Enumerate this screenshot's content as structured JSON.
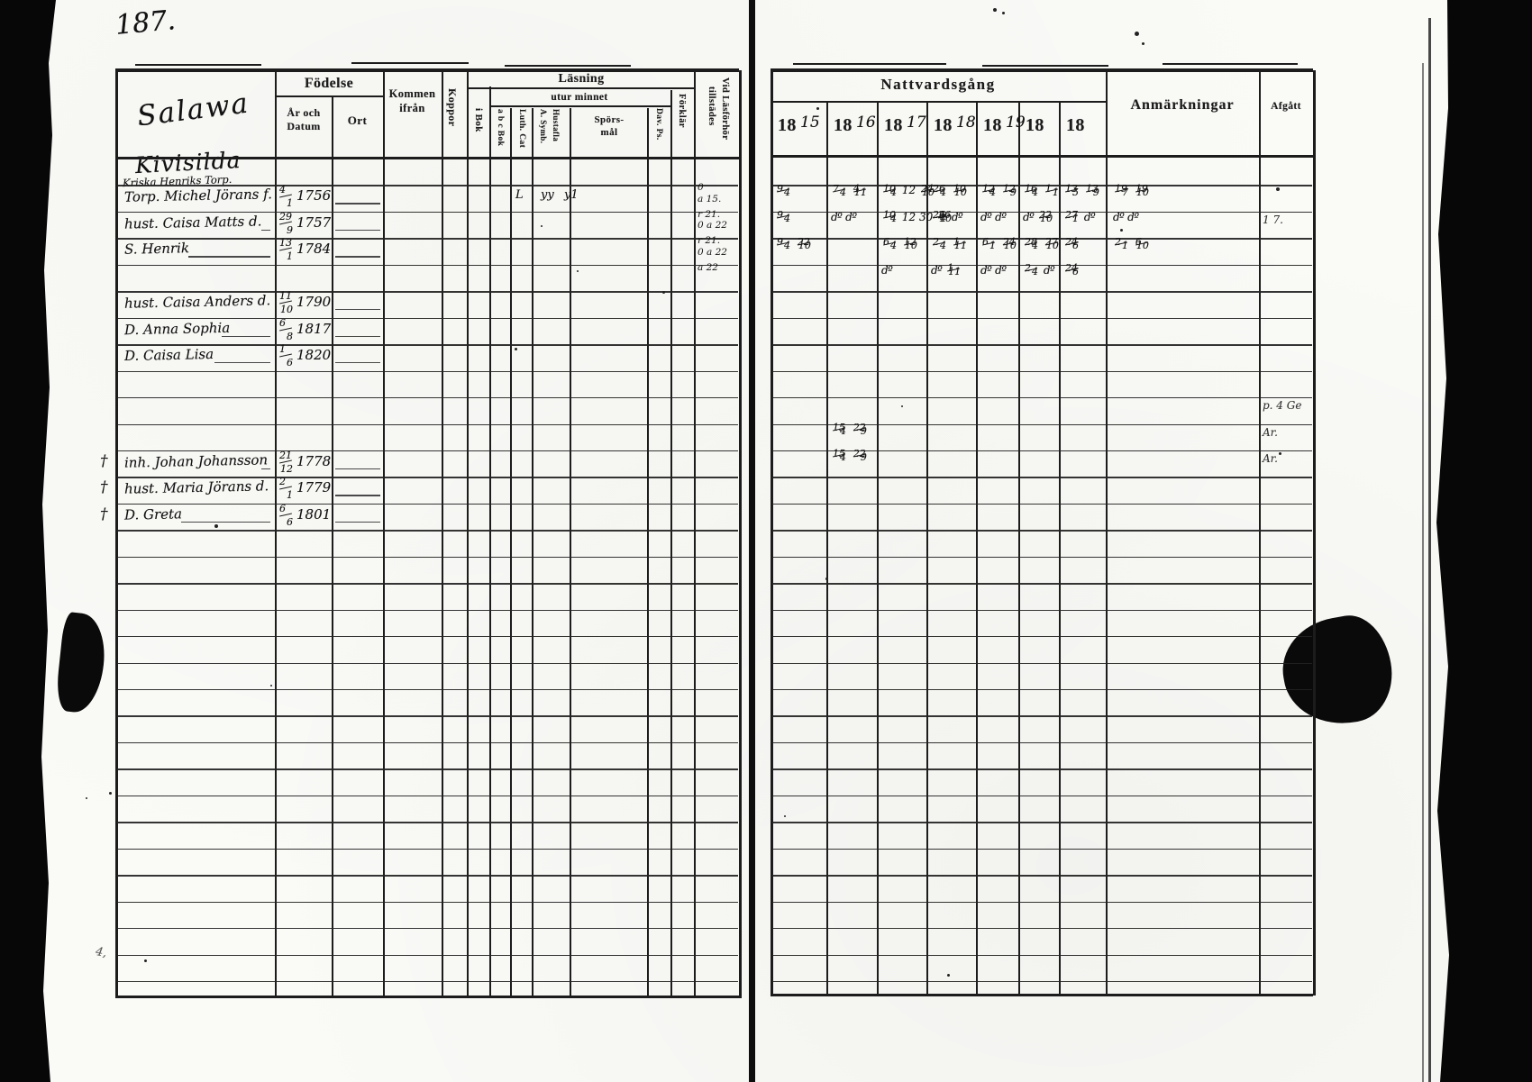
{
  "page_number": "187.",
  "left_page": {
    "village_script": "Salawa",
    "farm_script": "Kivisilda",
    "farm_subtitle": "Kriska Henriks Torp.",
    "columns": {
      "fodelse": "Födelse",
      "ar_och_datum": "År och\nDatum",
      "ort": "Ort",
      "kommen_ifran": "Kommen\nifrån",
      "koppor": "Koppor",
      "lasning": "Läsning",
      "utur_minnet": "utur minnet",
      "i_bok": "i Bok",
      "abc_bok": "a b c Bok",
      "luth_cat": "Luth. Cat",
      "a_symb": "A. Symb.",
      "hustafla": "Hustafla",
      "sporsmal": "Spörs-\nmål",
      "dav_ps": "Dav. Ps.",
      "forklar": "Förklär",
      "vid_lasforhor": "Vid Läsförhör",
      "tillstades": "tillstädes"
    },
    "entries": [
      {
        "row": 1,
        "margin": "",
        "name": "Torp. Michel Jörans f.",
        "birth_day": "4",
        "birth_month": "1",
        "birth_year": "1756"
      },
      {
        "row": 2,
        "margin": "",
        "name": "hust. Caisa Matts d.",
        "birth_day": "29",
        "birth_month": "9",
        "birth_year": "1757"
      },
      {
        "row": 3,
        "margin": "",
        "name": "S. Henrik",
        "birth_day": "13",
        "birth_month": "1",
        "birth_year": "1784"
      },
      {
        "row": 5,
        "margin": "",
        "name": "hust. Caisa Anders d.",
        "birth_day": "11",
        "birth_month": "10",
        "birth_year": "1790"
      },
      {
        "row": 6,
        "margin": "",
        "name": "D. Anna Sophia",
        "birth_day": "6",
        "birth_month": "8",
        "birth_year": "1817"
      },
      {
        "row": 7,
        "margin": "",
        "name": "D. Caisa Lisa",
        "birth_day": "1",
        "birth_month": "6",
        "birth_year": "1820"
      },
      {
        "row": 11,
        "margin": "†",
        "name": "inh. Johan Johansson",
        "birth_day": "21",
        "birth_month": "12",
        "birth_year": "1778"
      },
      {
        "row": 12,
        "margin": "†",
        "name": "hust. Maria Jörans d.",
        "birth_day": "2",
        "birth_month": "1",
        "birth_year": "1779"
      },
      {
        "row": 13,
        "margin": "†",
        "name": "D. Greta",
        "birth_day": "6",
        "birth_month": "6",
        "birth_year": "1801"
      }
    ],
    "reading_marks": [
      {
        "row": 1,
        "marks": [
          "L",
          "yy",
          "y1"
        ]
      }
    ],
    "attendance_marks": [
      {
        "row": 1,
        "lines": "0\na 15."
      },
      {
        "row": 2,
        "lines": "r 21.\n0 a 22"
      },
      {
        "row": 3,
        "lines": "r 21.\n0 a 22"
      },
      {
        "row": 4,
        "lines": "a 22"
      }
    ]
  },
  "right_page": {
    "title": "Nattvardsgång",
    "anmarkningar": "Anmärkningar",
    "afgatt": "Afgått",
    "year_print": "18",
    "year_suffixes": [
      "15",
      "16",
      "17",
      "18",
      "19",
      "",
      ""
    ],
    "communion_rows": [
      {
        "row": 1,
        "cells": [
          "9/4",
          "7/4 4/11",
          "10/4 12 24/10",
          "26/4 10/10",
          "12/4 12/9",
          "16/4 1/1",
          "13/5 13/9"
        ],
        "anm": "19/7 19/10",
        "anm_is_marks": true
      },
      {
        "row": 2,
        "cells": [
          "9/4",
          "d:o d:o",
          "10/4 12 30 26/10",
          "26/4 d:o",
          "d:o d:o",
          "d:o 22/10",
          "27/1 d:o"
        ],
        "anm": "d:o d:o",
        "anm_is_marks": true
      },
      {
        "row": 3,
        "cells": [
          "9/4 22/10",
          "",
          "6/4 12/10",
          "2/4 1/11",
          "6/1 24/10",
          "28/4 27/10",
          "24/6"
        ],
        "anm": "2/1 6/10",
        "anm_is_marks": true
      },
      {
        "row": 4,
        "cells": [
          "",
          "",
          "d:o",
          "d:o 1/11",
          "d:o d:o",
          "2/4 d:o",
          "24/6"
        ],
        "anm": "",
        "anm_is_marks": false
      },
      {
        "row": 10,
        "cells": [
          "",
          "15/4 22/9",
          "",
          "",
          "",
          "",
          ""
        ],
        "anm": "",
        "anm_is_marks": false
      },
      {
        "row": 11,
        "cells": [
          "",
          "15/4 22/9",
          "",
          "",
          "",
          "",
          ""
        ],
        "anm": "",
        "anm_is_marks": false
      }
    ],
    "afgatt_marks": [
      {
        "row": 2,
        "text": "1 7."
      },
      {
        "row": 9,
        "text": "p. 4 Ge"
      },
      {
        "row": 10,
        "text": "Ar."
      },
      {
        "row": 11,
        "text": "Ar."
      }
    ],
    "stray_mark": "4,"
  }
}
